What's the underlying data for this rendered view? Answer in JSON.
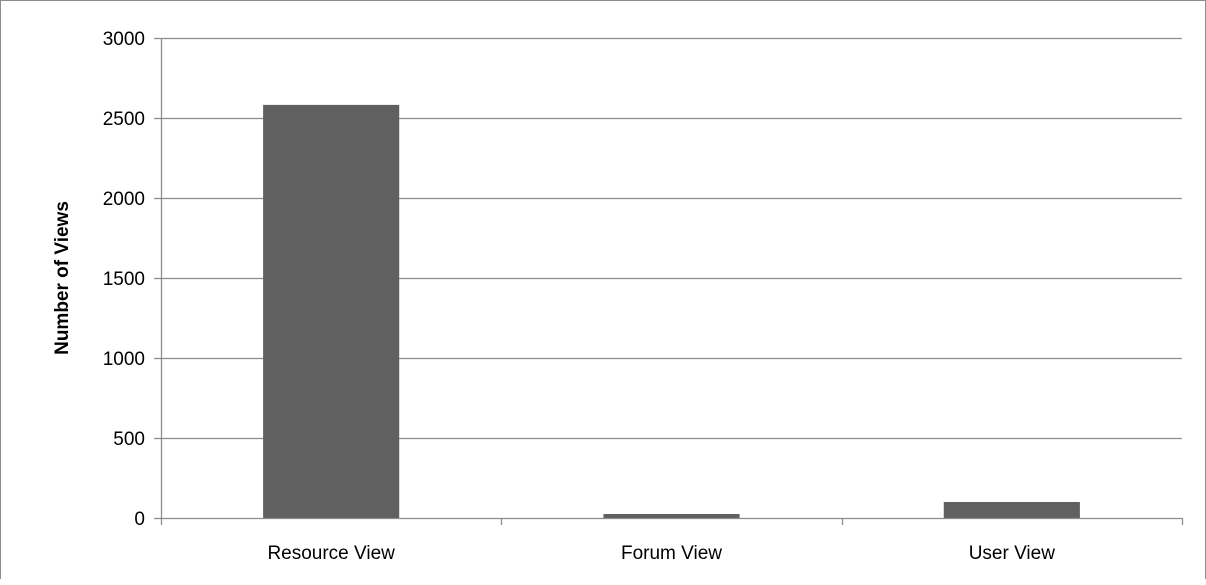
{
  "chart_data": {
    "type": "bar",
    "title": "",
    "xlabel": "",
    "ylabel": "Number of Views",
    "categories": [
      "Resource View",
      "Forum View",
      "User View"
    ],
    "values": [
      2582,
      25,
      100
    ],
    "ylim": [
      0,
      3000
    ],
    "yticks": [
      0,
      500,
      1000,
      1500,
      2000,
      2500,
      3000
    ],
    "grid": true,
    "legend": "none",
    "colors": {
      "bar": "#606060",
      "grid": "#8c8c8c",
      "axis": "#8c8c8c",
      "text": "#000000"
    }
  }
}
